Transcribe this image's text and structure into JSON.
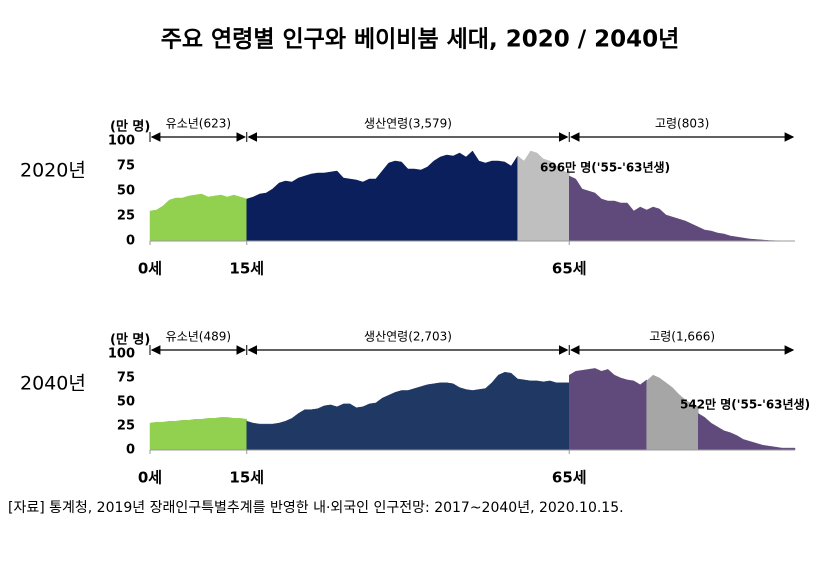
{
  "title": "주요 연령별 인구와 베이비붐 세대, 2020 / 2040년",
  "source": "[자료] 통계청, 2019년 장래인구특별추계를 반영한 내·외국인 인구전망: 2017~2040년, 2020.10.15.",
  "chart_data": [
    {
      "type": "area",
      "label": "2020년",
      "y_label": "(만 명)",
      "groups": [
        "유소년(623)",
        "생산연령(3,579)",
        "고령(803)"
      ],
      "annotation": "696만 명('55-'63년생)",
      "xlim": [
        0,
        100
      ],
      "xticks": [
        {
          "value": 0,
          "label": "0세"
        },
        {
          "value": 15,
          "label": "15세"
        },
        {
          "value": 65,
          "label": "65세"
        }
      ],
      "ylim": [
        0,
        100
      ],
      "yticks": [
        0,
        25,
        50,
        75,
        100
      ],
      "series": [
        {
          "color": "#92d050",
          "x": [
            0,
            1,
            2,
            3,
            4,
            5,
            6,
            7,
            8,
            9,
            10,
            11,
            12,
            13,
            14,
            15
          ],
          "values": [
            30,
            31,
            35,
            41,
            43,
            43,
            45,
            46,
            47,
            44,
            45,
            46,
            44,
            46,
            44,
            42
          ]
        },
        {
          "color": "#0a1f5c",
          "x": [
            15,
            16,
            17,
            18,
            19,
            20,
            21,
            22,
            23,
            24,
            25,
            26,
            27,
            28,
            29,
            30,
            31,
            32,
            33,
            34,
            35,
            36,
            37,
            38,
            39,
            40,
            41,
            42,
            43,
            44,
            45,
            46,
            47,
            48,
            49,
            50,
            51,
            52,
            53,
            54,
            55,
            56,
            57
          ],
          "values": [
            42,
            44,
            47,
            48,
            52,
            58,
            60,
            59,
            63,
            65,
            67,
            68,
            68,
            69,
            70,
            63,
            62,
            61,
            59,
            62,
            62,
            70,
            78,
            80,
            79,
            72,
            72,
            71,
            74,
            80,
            84,
            86,
            85,
            88,
            84,
            90,
            80,
            78,
            80,
            80,
            79,
            75,
            85
          ]
        },
        {
          "color": "#bfbfbf",
          "x": [
            57,
            58,
            59,
            60,
            61,
            62,
            63,
            64,
            65
          ],
          "values": [
            85,
            80,
            90,
            88,
            82,
            80,
            75,
            70,
            68
          ]
        },
        {
          "color": "#604a7b",
          "x": [
            65,
            66,
            67,
            68,
            69,
            70,
            71,
            72,
            73,
            74,
            75,
            76,
            77,
            78,
            79,
            80,
            81,
            82,
            83,
            84,
            85,
            86,
            87,
            88,
            89,
            90,
            91,
            92,
            93,
            94,
            95,
            96,
            97,
            98,
            99,
            100
          ],
          "values": [
            65,
            62,
            52,
            50,
            48,
            42,
            40,
            40,
            38,
            38,
            30,
            34,
            31,
            34,
            32,
            26,
            24,
            22,
            20,
            17,
            14,
            11,
            10,
            8,
            7,
            5,
            4,
            3,
            2,
            1.5,
            1,
            0.5,
            0.3,
            0.2,
            0.1,
            0
          ]
        }
      ]
    },
    {
      "type": "area",
      "label": "2040년",
      "y_label": "(만 명)",
      "groups": [
        "유소년(489)",
        "생산연령(2,703)",
        "고령(1,666)"
      ],
      "annotation": "542만 명('55-'63년생)",
      "xlim": [
        0,
        100
      ],
      "xticks": [
        {
          "value": 0,
          "label": "0세"
        },
        {
          "value": 15,
          "label": "15세"
        },
        {
          "value": 65,
          "label": "65세"
        }
      ],
      "ylim": [
        0,
        100
      ],
      "yticks": [
        0,
        25,
        50,
        75,
        100
      ],
      "series": [
        {
          "color": "#92d050",
          "x": [
            0,
            1,
            2,
            3,
            4,
            5,
            6,
            7,
            8,
            9,
            10,
            11,
            12,
            13,
            14,
            15
          ],
          "values": [
            28,
            29,
            29,
            30,
            30,
            31,
            31,
            32,
            32,
            33,
            33,
            34,
            34,
            33,
            33,
            32
          ]
        },
        {
          "color": "#1f3864",
          "x": [
            15,
            16,
            17,
            18,
            19,
            20,
            21,
            22,
            23,
            24,
            25,
            26,
            27,
            28,
            29,
            30,
            31,
            32,
            33,
            34,
            35,
            36,
            37,
            38,
            39,
            40,
            41,
            42,
            43,
            44,
            45,
            46,
            47,
            48,
            49,
            50,
            51,
            52,
            53,
            54,
            55,
            56,
            57,
            58,
            59,
            60,
            61,
            62,
            63,
            64,
            65
          ],
          "values": [
            30,
            28,
            27,
            27,
            27,
            28,
            30,
            33,
            38,
            42,
            42,
            43,
            46,
            47,
            45,
            48,
            48,
            44,
            45,
            48,
            49,
            54,
            57,
            60,
            62,
            62,
            64,
            66,
            68,
            69,
            70,
            70,
            69,
            65,
            63,
            62,
            63,
            64,
            70,
            78,
            81,
            80,
            74,
            73,
            72,
            72,
            71,
            72,
            70,
            70,
            70
          ]
        },
        {
          "color": "#604a7b",
          "x": [
            65,
            66,
            67,
            68,
            69,
            70,
            71,
            72,
            73,
            74,
            75,
            76,
            77
          ],
          "values": [
            78,
            82,
            83,
            84,
            85,
            82,
            84,
            78,
            75,
            73,
            72,
            68,
            73
          ]
        },
        {
          "color": "#a6a6a6",
          "x": [
            77,
            78,
            79,
            80,
            81,
            82,
            83,
            84,
            85
          ],
          "values": [
            72,
            78,
            75,
            70,
            65,
            58,
            52,
            48,
            45
          ]
        },
        {
          "color": "#604a7b",
          "x": [
            85,
            86,
            87,
            88,
            89,
            90,
            91,
            92,
            93,
            94,
            95,
            96,
            97,
            98,
            99,
            100
          ],
          "values": [
            38,
            34,
            28,
            24,
            20,
            18,
            15,
            11,
            9,
            7,
            5,
            4,
            3,
            2,
            2,
            2
          ]
        }
      ]
    }
  ]
}
